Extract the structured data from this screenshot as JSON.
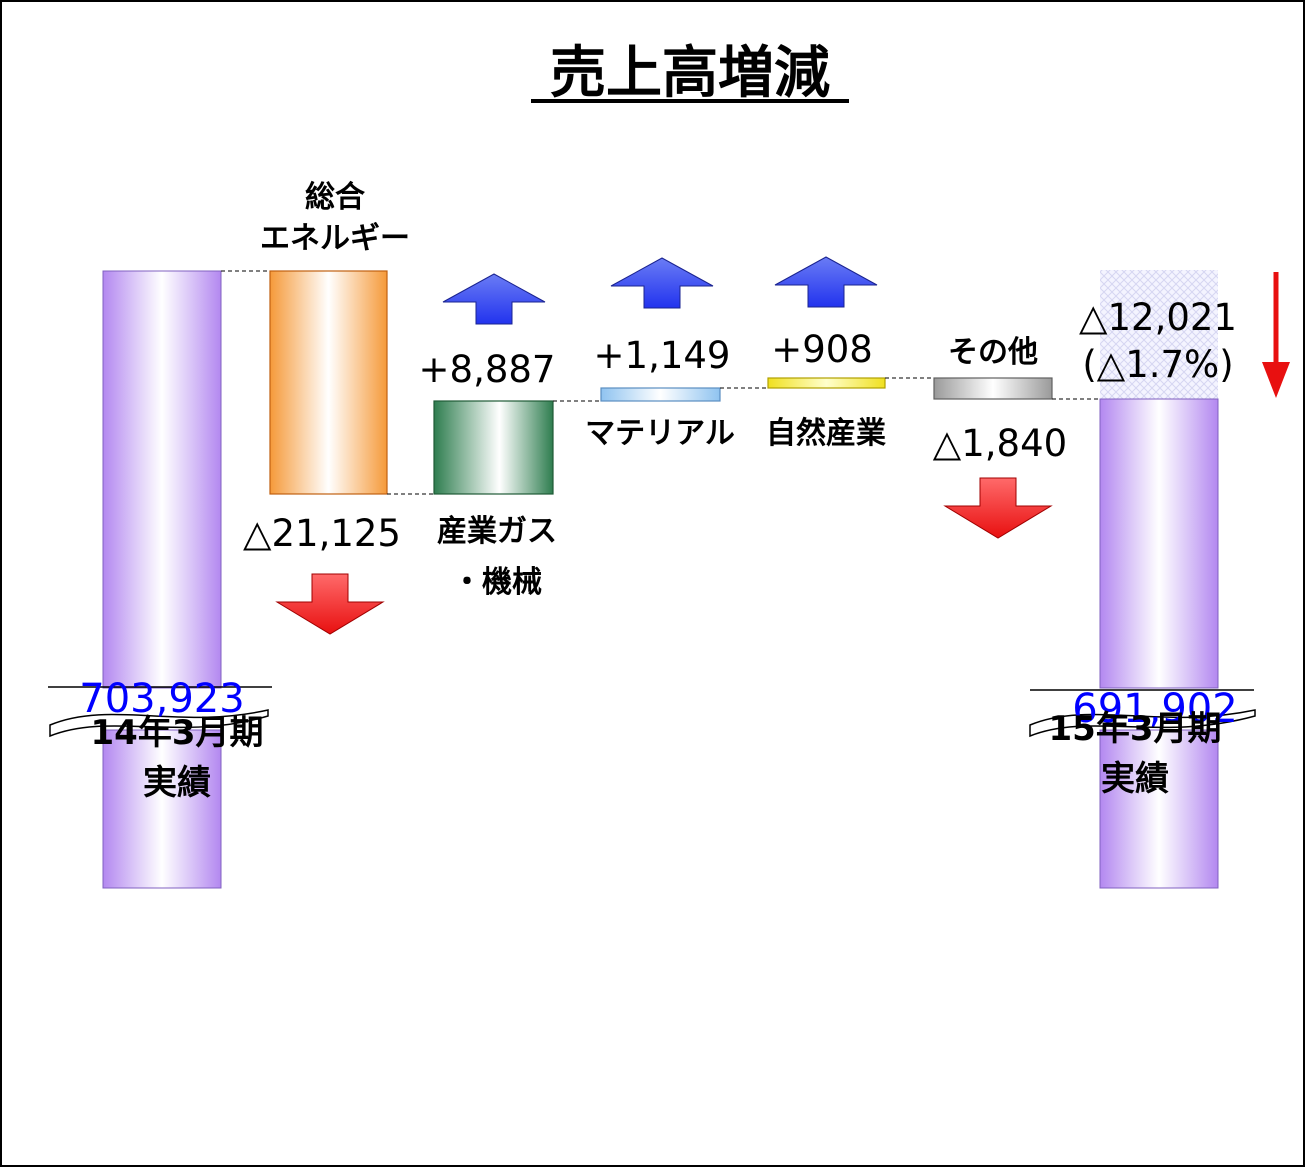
{
  "title": "売上高増減",
  "chart_data": {
    "type": "waterfall",
    "title": "売上高増減",
    "start": {
      "label": [
        "14年3月期",
        "実績"
      ],
      "value": 703923,
      "value_label": "703,923"
    },
    "end": {
      "label": [
        "15年3月期",
        "実績"
      ],
      "value": 691902,
      "value_label": "691,902"
    },
    "steps": [
      {
        "label": [
          "総合",
          "エネルギー"
        ],
        "delta": -21125,
        "delta_label": "△21,125",
        "direction": "down",
        "color": "#f59a3a"
      },
      {
        "label": [
          "産業ガス",
          "・機械"
        ],
        "delta": 8887,
        "delta_label": "+8,887",
        "direction": "up",
        "color": "#2e7d4f"
      },
      {
        "label": [
          "マテリアル"
        ],
        "delta": 1149,
        "delta_label": "+1,149",
        "direction": "up",
        "color": "#8fc3f0"
      },
      {
        "label": [
          "自然産業"
        ],
        "delta": 908,
        "delta_label": "+908",
        "direction": "up",
        "color": "#f0e020"
      },
      {
        "label": [
          "その他"
        ],
        "delta": -1840,
        "delta_label": "△1,840",
        "direction": "down",
        "color": "#9a9a9a"
      }
    ],
    "total_change": {
      "value": -12021,
      "label": "△12,021",
      "percent_label": "(△1.7%)"
    },
    "axis_break": true,
    "colors": {
      "total_bar": "#b388f0",
      "value_text": "#0000ff",
      "up_arrow": "#2233ee",
      "down_arrow": "#e81010"
    }
  }
}
